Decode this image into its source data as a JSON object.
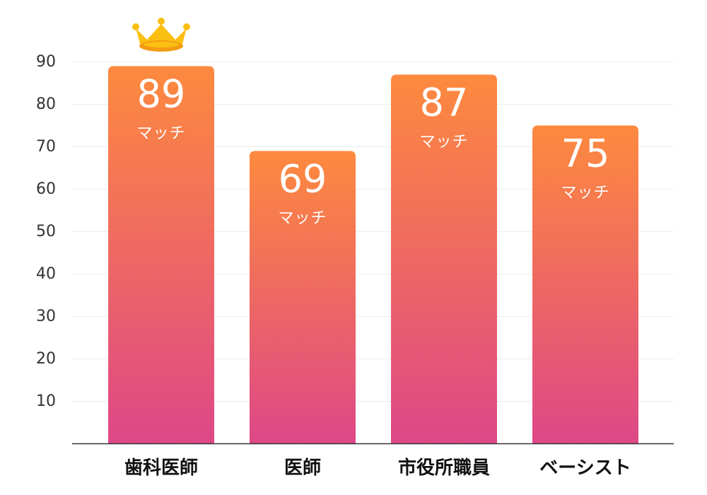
{
  "chart_data": {
    "type": "bar",
    "categories": [
      "歯科医師",
      "医師",
      "市役所職員",
      "ベーシスト"
    ],
    "values": [
      89,
      69,
      87,
      75
    ],
    "value_unit": "マッチ",
    "ylim": [
      0,
      90
    ],
    "yticks": [
      10,
      20,
      30,
      40,
      50,
      60,
      70,
      80,
      90
    ],
    "grid": true,
    "highlight": {
      "category": "歯科医師",
      "icon": "crown-icon"
    },
    "colors": {
      "bar_top": "#fd8a3e",
      "bar_bottom": "#de4788",
      "label": "#ffffff",
      "axis": "#333333",
      "grid": "#ececec",
      "crown": "#fbbf12",
      "crown_shadow": "#f39c12"
    }
  }
}
